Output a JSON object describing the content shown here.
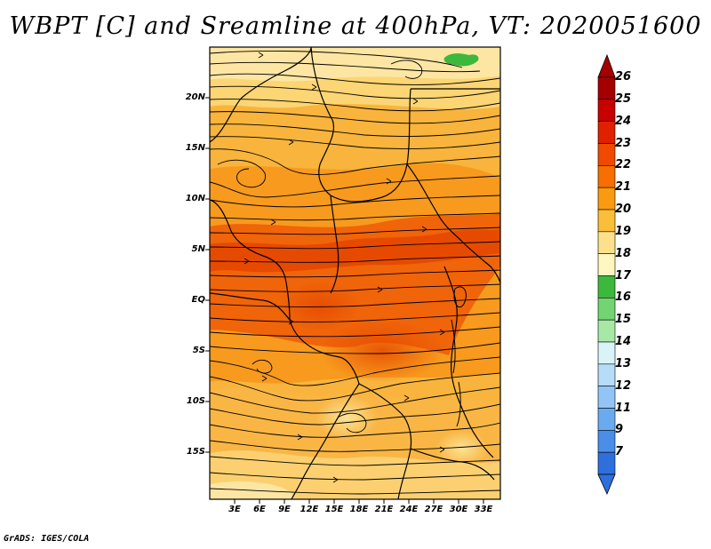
{
  "title": "WBPT [C] and Sreamline at 400hPa, VT: 2020051600",
  "credit": "GrADS: IGES/COLA",
  "map": {
    "lat_labels": [
      "20N",
      "15N",
      "10N",
      "5N",
      "EQ",
      "5S",
      "10S",
      "15S"
    ],
    "lon_labels": [
      "3E",
      "6E",
      "9E",
      "12E",
      "15E",
      "18E",
      "21E",
      "24E",
      "27E",
      "30E",
      "33E"
    ]
  },
  "colorbar": {
    "labels": [
      "26",
      "25",
      "24",
      "23",
      "22",
      "21",
      "20",
      "19",
      "18",
      "17",
      "16",
      "15",
      "14",
      "13",
      "12",
      "11",
      "9",
      "7"
    ],
    "colors": [
      "#a50000",
      "#c80000",
      "#e02000",
      "#f04a00",
      "#f76f00",
      "#f99a10",
      "#fbbe3a",
      "#fde08a",
      "#fff6c0",
      "#3cb83c",
      "#73d473",
      "#a7e8a7",
      "#d9f4f7",
      "#b7dcf8",
      "#92c5f5",
      "#6aabf0",
      "#4a8ee8",
      "#2e6fdb"
    ]
  }
}
